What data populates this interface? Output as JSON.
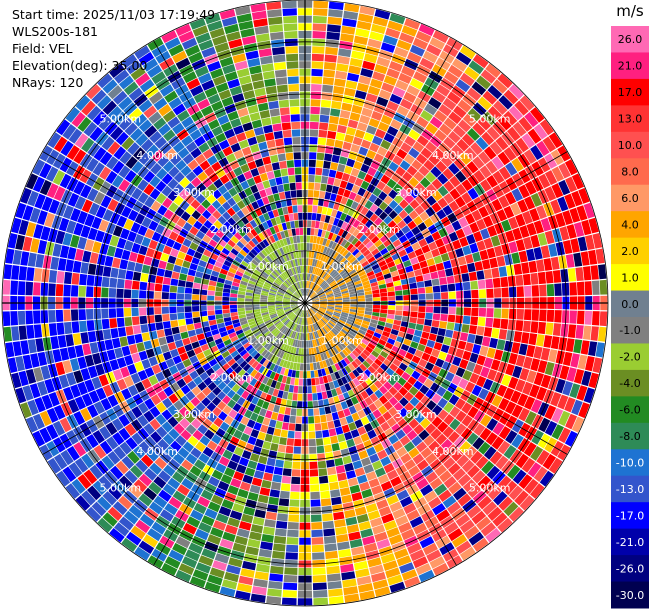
{
  "info": {
    "start_time": "Start time: 2025/11/03 17:19:49",
    "instrument": "WLS200s-181",
    "field": "Field: VEL",
    "elevation": "Elevation(deg): 35.00",
    "nrays": "NRays: 120"
  },
  "chart_data": {
    "type": "heatmap",
    "projection": "polar-ppi",
    "title": "",
    "field": "VEL",
    "units": "m/s",
    "n_rays": 120,
    "range_rings_km": [
      1,
      2,
      3,
      4,
      5
    ],
    "range_ring_labels": [
      "1.00km",
      "2.00km",
      "3.00km",
      "4.00km",
      "5.00km"
    ],
    "max_range_km": 5.8,
    "spokes_deg": [
      0,
      30,
      60,
      90,
      120,
      150,
      180,
      210,
      240,
      270,
      300,
      330
    ],
    "colorbar": {
      "label": "m/s",
      "ticks": [
        "26.0",
        "21.0",
        "17.0",
        "13.0",
        "10.0",
        "8.0",
        "6.0",
        "4.0",
        "2.0",
        "1.0",
        "0.0",
        "-1.0",
        "-2.0",
        "-4.0",
        "-6.0",
        "-8.0",
        "-10.0",
        "-13.0",
        "-17.0",
        "-21.0",
        "-26.0",
        "-30.0"
      ],
      "colors": [
        "#ff69b4",
        "#ff2080",
        "#ff0000",
        "#ff3333",
        "#ff5050",
        "#ff6a4d",
        "#ff9966",
        "#ffa500",
        "#ffd000",
        "#ffff00",
        "#708090",
        "#808080",
        "#9acd32",
        "#6b8e23",
        "#228b22",
        "#2e8b57",
        "#1e73d2",
        "#3355cc",
        "#0000ff",
        "#0000aa",
        "#000080",
        "#000050"
      ]
    },
    "sector_summary": [
      {
        "azimuth_deg": 45,
        "dominant_velocity_ms": 13.0
      },
      {
        "azimuth_deg": 90,
        "dominant_velocity_ms": 17.0
      },
      {
        "azimuth_deg": 135,
        "dominant_velocity_ms": 10.0
      },
      {
        "azimuth_deg": 225,
        "dominant_velocity_ms": -17.0
      },
      {
        "azimuth_deg": 270,
        "dominant_velocity_ms": -13.0
      },
      {
        "azimuth_deg": 315,
        "dominant_velocity_ms": -8.0
      }
    ]
  }
}
